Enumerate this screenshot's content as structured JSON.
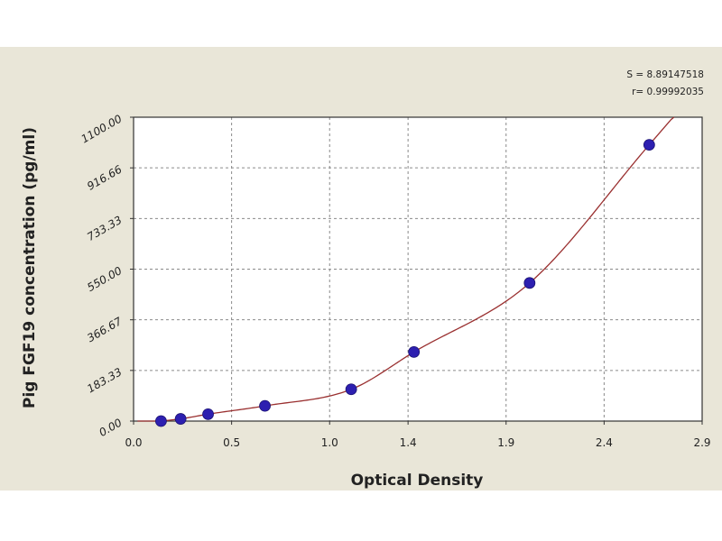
{
  "chart_data": {
    "type": "scatter",
    "title": "",
    "xlabel": "Optical Density",
    "ylabel": "Pig FGF19 concentration (pg/ml)",
    "xlim": [
      0.0,
      2.9
    ],
    "ylim": [
      0.0,
      1100.0
    ],
    "x_ticks": [
      0.0,
      0.5,
      1.0,
      1.4,
      1.9,
      2.4,
      2.9
    ],
    "x_tick_labels": [
      "0.0",
      "0.5",
      "1.0",
      "1.4",
      "1.9",
      "2.4",
      "2.9"
    ],
    "y_ticks": [
      0.0,
      183.33,
      366.67,
      550.0,
      733.33,
      916.66,
      1100.0
    ],
    "y_tick_labels": [
      "0.00",
      "183.33",
      "366.67",
      "550.00",
      "733.33",
      "916.66",
      "1100.00"
    ],
    "grid": true,
    "series": [
      {
        "kind": "points",
        "x": [
          0.14,
          0.24,
          0.38,
          0.67,
          1.11,
          1.43,
          2.02,
          2.63
        ],
        "y": [
          0,
          8,
          25,
          55,
          115,
          250,
          500,
          1000
        ],
        "color": "#2d1fb0"
      },
      {
        "kind": "fit-curve",
        "color": "#9a3030"
      }
    ],
    "stats": {
      "s_label": "S = 8.89147518",
      "r_label": "r= 0.99992035"
    }
  }
}
